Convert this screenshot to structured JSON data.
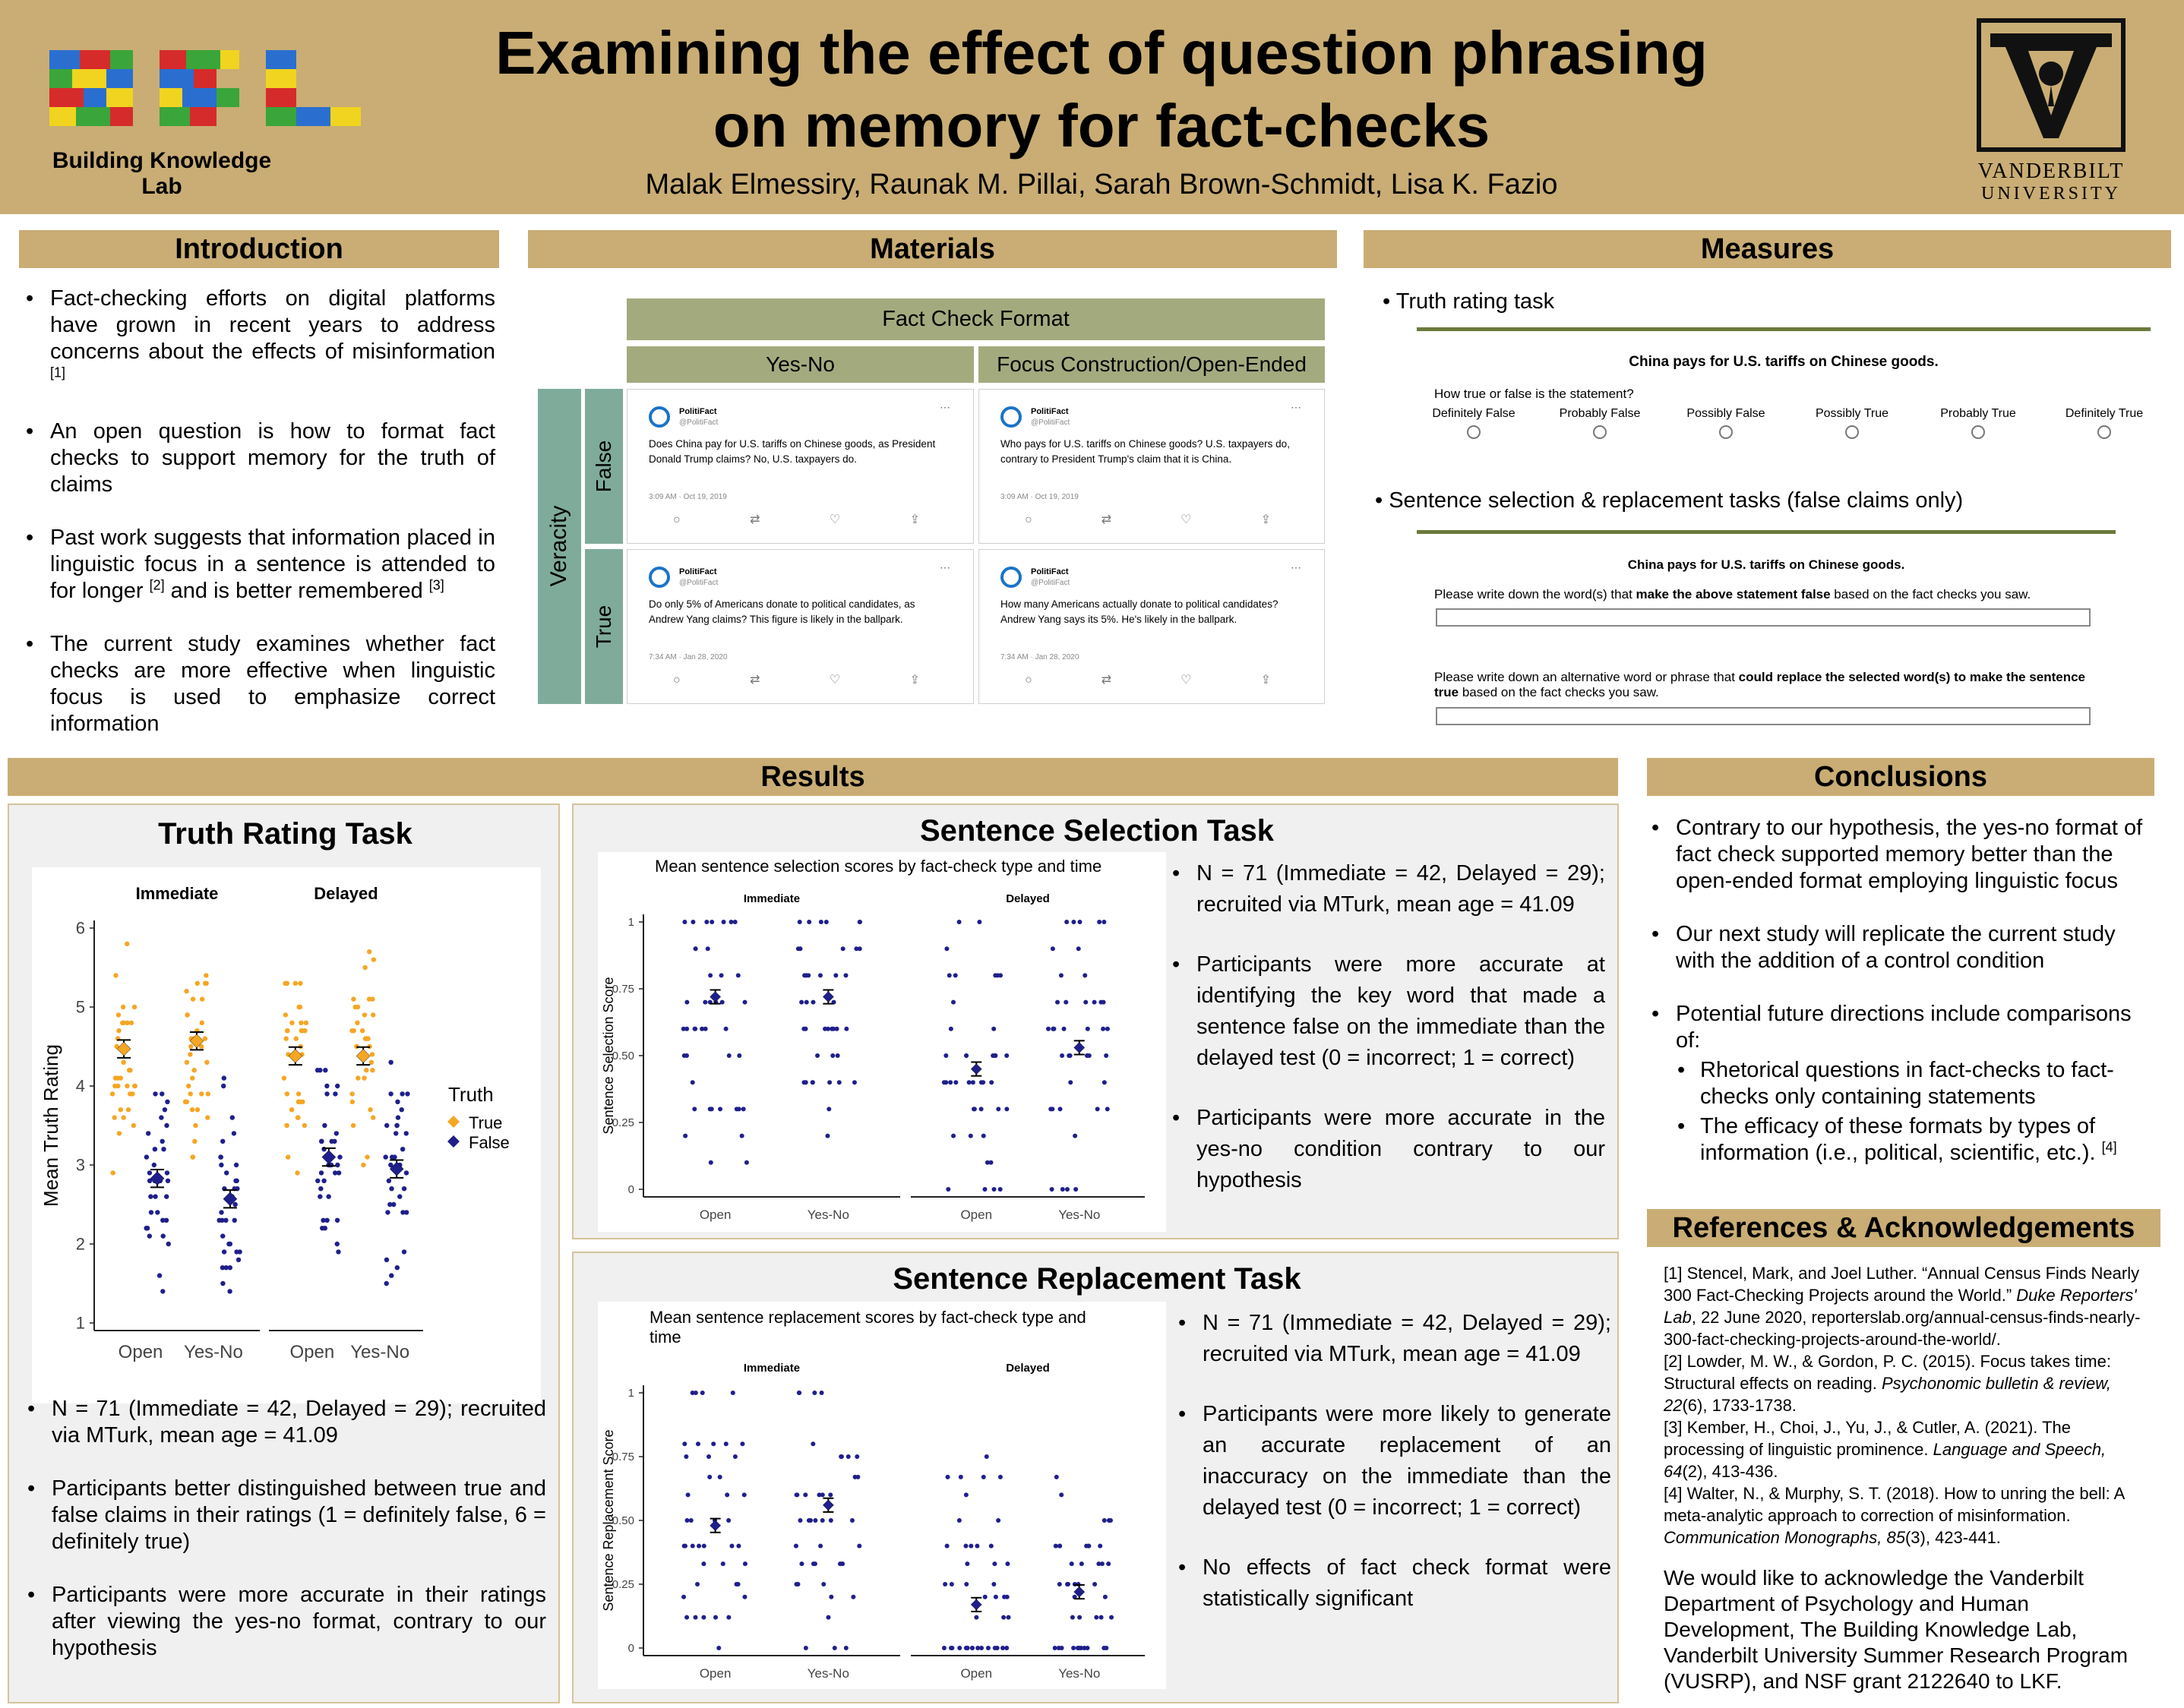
{
  "header": {
    "title_line1": "Examining the effect of question phrasing",
    "title_line2": "on memory for fact-checks",
    "authors": "Malak Elmessiry, Raunak M. Pillai, Sarah Brown-Schmidt, Lisa K. Fazio",
    "lab_logo_text": "Building Knowledge Lab",
    "lab_logo_letters": "BKL",
    "university_line1": "VANDERBILT",
    "university_line2": "UNIVERSITY"
  },
  "introduction": {
    "title": "Introduction",
    "bullets": [
      {
        "text": "Fact-checking efforts on digital platforms have grown in recent years to address concerns about the effects of misinformation ",
        "ref": "[1]"
      },
      {
        "text": "An open question is how to format fact checks to support memory for the truth of claims",
        "ref": ""
      },
      {
        "text": "Past work suggests that information placed in linguistic focus in a sentence is attended to for longer ",
        "ref": "[2]",
        "text2": " and is better remembered ",
        "ref2": "[3]"
      },
      {
        "text": "The current study examines whether fact checks are more effective when linguistic focus is used to emphasize correct information",
        "ref": ""
      }
    ]
  },
  "materials": {
    "title": "Materials",
    "table_title": "Fact Check Format",
    "col1": "Yes-No",
    "col2": "Focus Construction/Open-Ended",
    "row_group": "Veracity",
    "row1": "False",
    "row2": "True",
    "tweets": [
      {
        "account": "PolitiFact",
        "handle": "@PolitiFact",
        "text": "Does China pay for U.S. tariffs on Chinese goods, as President Donald Trump claims? No, U.S. taxpayers do.",
        "date": "3:09 AM · Oct 19, 2019"
      },
      {
        "account": "PolitiFact",
        "handle": "@PolitiFact",
        "text": "Who pays for U.S. tariffs on Chinese goods? U.S. taxpayers do, contrary to President Trump's claim that it is China.",
        "date": "3:09 AM · Oct 19, 2019"
      },
      {
        "account": "PolitiFact",
        "handle": "@PolitiFact",
        "text": "Do only 5% of Americans donate to political candidates, as Andrew Yang claims? This figure is likely in the ballpark.",
        "date": "7:34 AM · Jan 28, 2020"
      },
      {
        "account": "PolitiFact",
        "handle": "@PolitiFact",
        "text": "How many Americans actually donate to political candidates? Andrew Yang says its 5%. He's likely in the ballpark.",
        "date": "7:34 AM · Jan 28, 2020"
      }
    ]
  },
  "measures": {
    "title": "Measures",
    "bullet1": "Truth rating task",
    "statement": "China pays for U.S. tariffs on Chinese goods.",
    "question": "How true or false is the statement?",
    "scale": [
      "Definitely False",
      "Probably False",
      "Possibly False",
      "Possibly True",
      "Probably True",
      "Definitely True"
    ],
    "bullet2": "Sentence selection & replacement tasks (false claims only)",
    "statement2": "China pays for U.S. tariffs on Chinese goods.",
    "q1_pre": "Please write down the word(s) that ",
    "q1_bold": "make the above statement false",
    "q1_post": " based on the fact checks you saw.",
    "q2_pre": "Please write down an alternative word or phrase that ",
    "q2_bold": "could replace the selected word(s) to make the sentence true",
    "q2_post": " based on the fact checks you saw."
  },
  "results": {
    "title": "Results",
    "truth": {
      "title": "Truth Rating Task",
      "bullets": [
        "N = 71 (Immediate = 42, Delayed = 29); recruited via MTurk, mean age = 41.09",
        "Participants better distinguished between true and false claims in their ratings (1 = definitely false, 6 = definitely true)",
        "Participants were more accurate in their ratings after viewing the yes-no format, contrary to our hypothesis"
      ]
    },
    "selection": {
      "title": "Sentence Selection Task",
      "bullets": [
        "N = 71 (Immediate = 42, Delayed = 29); recruited via MTurk, mean age = 41.09",
        "Participants were more accurate at identifying the key word that made a sentence false on the immediate than the delayed test (0 = incorrect; 1 = correct)",
        "Participants were more accurate in the yes-no condition contrary to our hypothesis"
      ]
    },
    "replacement": {
      "title": "Sentence Replacement Task",
      "bullets": [
        "N = 71 (Immediate = 42, Delayed = 29); recruited via MTurk, mean age = 41.09",
        "Participants were more likely to generate an accurate replacement of an inaccuracy on the immediate than the delayed test (0 = incorrect; 1 = correct)",
        "No effects of fact check format were statistically significant"
      ]
    }
  },
  "conclusions": {
    "title": "Conclusions",
    "bullets": [
      "Contrary to our hypothesis, the yes-no format of fact check supported memory better than the open-ended format employing linguistic focus",
      "Our next study will replicate the current study with the addition of a control condition",
      "Potential future directions include comparisons of:"
    ],
    "sub_bullets": [
      {
        "text": "Rhetorical questions in fact-checks to fact-checks only containing statements",
        "ref": ""
      },
      {
        "text": "The efficacy of these formats by types of information (i.e., political, scientific, etc.). ",
        "ref": "[4]"
      }
    ]
  },
  "references": {
    "title": "References & Acknowledgements",
    "items": [
      {
        "pre": "[1] Stencel, Mark, and Joel Luther. “Annual Census Finds Nearly 300 Fact-Checking Projects around the World.” ",
        "em": "Duke Reporters' Lab",
        "post": ", 22 June 2020, reporterslab.org/annual-census-finds-nearly-300-fact-checking-projects-around-the-world/."
      },
      {
        "pre": "[2] Lowder, M. W., & Gordon, P. C. (2015). Focus takes time: Structural effects on reading. ",
        "em": "Psychonomic bulletin & review, 22",
        "post": "(6), 1733-1738."
      },
      {
        "pre": "[3] Kember, H., Choi, J., Yu, J., & Cutler, A. (2021). The processing of linguistic prominence. ",
        "em": "Language and Speech, 64",
        "post": "(2), 413-436."
      },
      {
        "pre": "[4] Walter, N., & Murphy, S. T. (2018). How to unring the bell: A meta-analytic approach to correction of misinformation. ",
        "em": "Communication Monographs, 85",
        "post": "(3), 423-441."
      }
    ],
    "acknowledgement": "We would like to acknowledge the Vanderbilt Department of Psychology and Human Development, The Building Knowledge Lab, Vanderbilt University Summer Research Program (VUSRP), and NSF grant 2122640 to LKF."
  },
  "colors": {
    "gold": "#c9ad74",
    "true": "#f5a623",
    "false": "#1f1f8c",
    "table_header": "#a3ab7e",
    "veracity": "#7fab9b"
  },
  "chart_data": [
    {
      "type": "scatter",
      "id": "truth",
      "title": "",
      "ylabel": "Mean Truth Rating",
      "xlabel": "",
      "panels": [
        "Immediate",
        "Delayed"
      ],
      "categories": [
        "Open",
        "Yes-No"
      ],
      "ylim": [
        1,
        6
      ],
      "yticks": [
        1,
        2,
        3,
        4,
        5,
        6
      ],
      "legend_title": "Truth",
      "legend_position": "right",
      "series": [
        {
          "name": "True",
          "means": {
            "Immediate": [
              4.47,
              4.57
            ],
            "Delayed": [
              4.38,
              4.38
            ]
          }
        },
        {
          "name": "False",
          "means": {
            "Immediate": [
              2.83,
              2.57
            ],
            "Delayed": [
              3.1,
              2.95
            ]
          }
        }
      ]
    },
    {
      "type": "scatter",
      "id": "selection",
      "title": "Mean sentence selection scores by fact-check type and time",
      "ylabel": "Sentence Selection Score",
      "xlabel": "",
      "panels": [
        "Immediate",
        "Delayed"
      ],
      "categories": [
        "Open",
        "Yes-No"
      ],
      "ylim": [
        0,
        1
      ],
      "yticks": [
        0,
        0.25,
        0.5,
        0.75,
        1
      ],
      "ytick_labels": [
        "0",
        "0.25",
        "0.50",
        "0.75",
        "1"
      ],
      "means": {
        "Immediate": [
          0.72,
          0.72
        ],
        "Delayed": [
          0.45,
          0.53
        ]
      }
    },
    {
      "type": "scatter",
      "id": "replacement",
      "title": "Mean sentence replacement scores by fact-check type and time",
      "ylabel": "Sentence Replacement Score",
      "xlabel": "",
      "panels": [
        "Immediate",
        "Delayed"
      ],
      "categories": [
        "Open",
        "Yes-No"
      ],
      "ylim": [
        0,
        1
      ],
      "yticks": [
        0,
        0.25,
        0.5,
        0.75,
        1
      ],
      "ytick_labels": [
        "0",
        "0.25",
        "0.50",
        "0.75",
        "1"
      ],
      "means": {
        "Immediate": [
          0.48,
          0.56
        ],
        "Delayed": [
          0.17,
          0.22
        ]
      }
    }
  ]
}
